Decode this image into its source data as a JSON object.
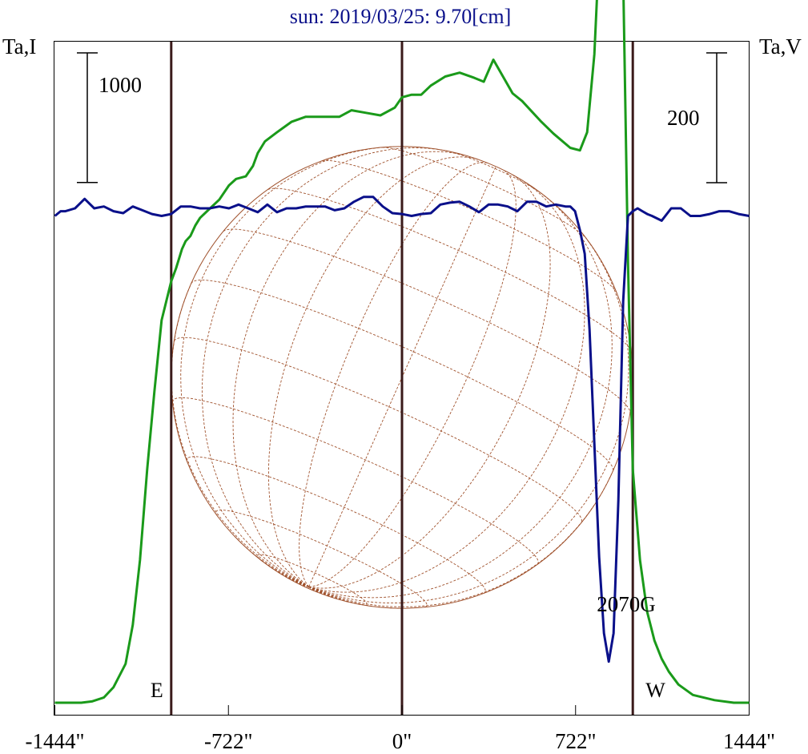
{
  "chart_data": {
    "type": "line",
    "title": "sun: 2019/03/25: 9.70[cm]",
    "left_axis_label": "Ta,I",
    "right_axis_label": "Ta,V",
    "x_tick_labels": [
      "-1444\"",
      "-722\"",
      "0\"",
      "722\"",
      "1444\""
    ],
    "x_ticks": [
      -1444,
      -722,
      0,
      722,
      1444
    ],
    "xlim": [
      -1444,
      1444
    ],
    "left_scale_bar": {
      "label": "1000",
      "value": 1000
    },
    "right_scale_bar": {
      "label": "200",
      "value": 200
    },
    "ylim_I": [
      -300,
      5000
    ],
    "ylim_V": [
      -380,
      90
    ],
    "vertical_markers": [
      {
        "label": "E",
        "x": -960
      },
      {
        "label": "",
        "x": 0
      },
      {
        "label": "W",
        "x": 960
      }
    ],
    "annotations": [
      {
        "text": "2070G",
        "x": 920
      }
    ],
    "solar_disk": {
      "radius_arcsec": 960,
      "grid": "heliographic",
      "color": "#a0522d"
    },
    "series": [
      {
        "key": "I",
        "color": "#1a9a1a",
        "x": [
          -1444,
          -1334,
          -1290,
          -1240,
          -1200,
          -1150,
          -1120,
          -1090,
          -1060,
          -1030,
          -1000,
          -980,
          -960,
          -940,
          -915,
          -900,
          -880,
          -860,
          -840,
          -800,
          -760,
          -720,
          -690,
          -650,
          -620,
          -600,
          -570,
          -520,
          -460,
          -400,
          -330,
          -260,
          -210,
          -150,
          -90,
          -30,
          0,
          40,
          80,
          120,
          180,
          240,
          300,
          340,
          380,
          420,
          460,
          500,
          540,
          580,
          630,
          700,
          740,
          770,
          800,
          830,
          860,
          880,
          900,
          920,
          940,
          960,
          990,
          1020,
          1050,
          1080,
          1110,
          1150,
          1210,
          1300,
          1380,
          1444
        ],
        "y": [
          0,
          0,
          10,
          40,
          120,
          300,
          600,
          1100,
          1800,
          2400,
          2950,
          3100,
          3250,
          3350,
          3500,
          3560,
          3600,
          3680,
          3740,
          3810,
          3880,
          3990,
          4040,
          4060,
          4140,
          4240,
          4330,
          4400,
          4480,
          4520,
          4520,
          4520,
          4570,
          4550,
          4530,
          4590,
          4670,
          4690,
          4690,
          4760,
          4830,
          4860,
          4820,
          4790,
          4960,
          4830,
          4700,
          4640,
          4560,
          4480,
          4390,
          4280,
          4260,
          4400,
          5000,
          6200,
          7200,
          7600,
          7000,
          5600,
          3400,
          1800,
          1100,
          700,
          480,
          340,
          240,
          140,
          60,
          20,
          0,
          0
        ]
      },
      {
        "key": "V",
        "color": "#0a108a",
        "x": [
          -1444,
          -1420,
          -1400,
          -1360,
          -1320,
          -1280,
          -1240,
          -1200,
          -1160,
          -1120,
          -1080,
          -1040,
          -1000,
          -960,
          -920,
          -880,
          -840,
          -800,
          -760,
          -720,
          -680,
          -640,
          -600,
          -560,
          -520,
          -480,
          -440,
          -400,
          -360,
          -320,
          -280,
          -240,
          -200,
          -160,
          -120,
          -80,
          -40,
          0,
          40,
          80,
          120,
          160,
          200,
          240,
          280,
          320,
          360,
          400,
          440,
          480,
          520,
          560,
          600,
          640,
          680,
          700,
          720,
          740,
          760,
          780,
          800,
          820,
          840,
          860,
          880,
          900,
          920,
          940,
          960,
          980,
          1000,
          1020,
          1040,
          1080,
          1120,
          1160,
          1200,
          1240,
          1280,
          1320,
          1360,
          1400,
          1444
        ],
        "y": [
          0,
          5,
          5,
          8,
          18,
          8,
          10,
          5,
          3,
          10,
          6,
          2,
          0,
          2,
          10,
          10,
          8,
          8,
          10,
          8,
          12,
          8,
          4,
          12,
          4,
          8,
          8,
          10,
          10,
          10,
          6,
          8,
          15,
          20,
          20,
          10,
          3,
          2,
          0,
          2,
          3,
          12,
          14,
          15,
          10,
          4,
          12,
          12,
          10,
          5,
          15,
          15,
          10,
          12,
          10,
          10,
          5,
          -15,
          -40,
          -120,
          -240,
          -360,
          -440,
          -470,
          -440,
          -300,
          -90,
          0,
          5,
          8,
          5,
          2,
          0,
          -5,
          8,
          8,
          0,
          0,
          2,
          5,
          5,
          2,
          0
        ]
      }
    ]
  }
}
